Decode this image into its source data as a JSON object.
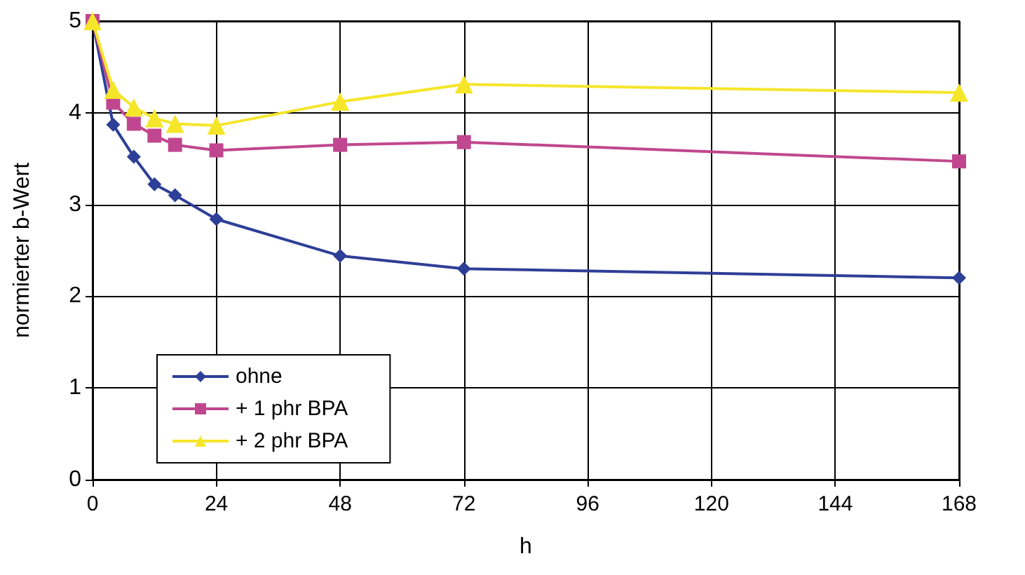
{
  "chart_data": {
    "type": "line",
    "xlabel": "h",
    "ylabel": "normierter b-Wert",
    "x": [
      0,
      4,
      8,
      12,
      16,
      24,
      48,
      72,
      168
    ],
    "series": [
      {
        "name": "ohne",
        "color": "#2e3f97",
        "marker": "diamond",
        "values": [
          5,
          3.87,
          3.52,
          3.22,
          3.1,
          2.84,
          2.44,
          2.3,
          2.2
        ]
      },
      {
        "name": "+ 1 phr BPA",
        "color": "#c0478f",
        "marker": "square",
        "values": [
          5,
          4.11,
          3.88,
          3.75,
          3.65,
          3.59,
          3.65,
          3.68,
          3.47
        ]
      },
      {
        "name": "+ 2 phr BPA",
        "color": "#f5e62a",
        "marker": "triangle",
        "values": [
          5,
          4.25,
          4.06,
          3.94,
          3.88,
          3.86,
          4.12,
          4.31,
          4.22
        ]
      }
    ],
    "xlim": [
      0,
      168
    ],
    "xticks": [
      0,
      24,
      48,
      72,
      96,
      120,
      144,
      168
    ],
    "ylim": [
      0,
      5
    ],
    "yticks": [
      0,
      1,
      2,
      3,
      4,
      5
    ],
    "grid": true,
    "legend": "bottom left"
  }
}
